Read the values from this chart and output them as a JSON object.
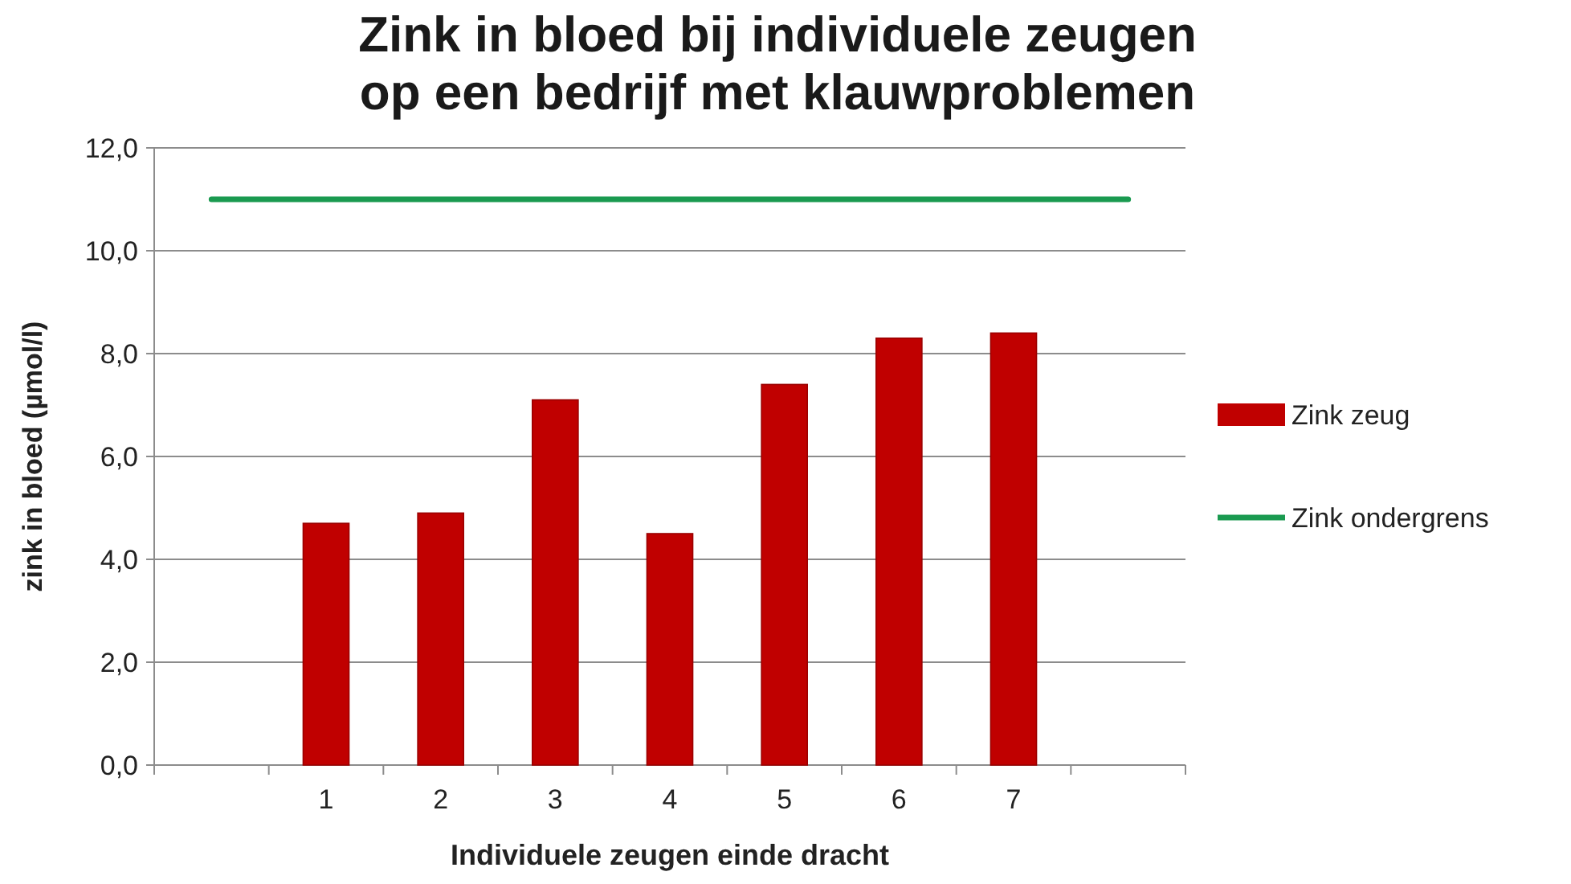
{
  "chart_data": {
    "type": "bar",
    "title": "Zink in bloed bij individuele zeugen\nop een bedrijf met klauwproblemen",
    "xlabel": "Individuele zeugen einde dracht",
    "ylabel": "zink in bloed (µmol/l)",
    "categories": [
      null,
      "1",
      "2",
      "3",
      "4",
      "5",
      "6",
      "7",
      null
    ],
    "series": [
      {
        "name": "Zink zeug",
        "color": "#c00000",
        "values": [
          null,
          4.7,
          4.9,
          7.1,
          4.5,
          7.4,
          8.3,
          8.4,
          null
        ]
      },
      {
        "name": "Zink ondergrens",
        "type": "line",
        "color": "#1a9a50",
        "values": [
          11,
          11,
          11,
          11,
          11,
          11,
          11,
          11,
          11
        ]
      }
    ],
    "ylim": [
      0,
      12
    ],
    "yticks": [
      {
        "value": 0,
        "label": "0,0"
      },
      {
        "value": 2,
        "label": "2,0"
      },
      {
        "value": 4,
        "label": "4,0"
      },
      {
        "value": 6,
        "label": "6,0"
      },
      {
        "value": 8,
        "label": "8,0"
      },
      {
        "value": 10,
        "label": "10,0"
      },
      {
        "value": 12,
        "label": "12,0"
      }
    ],
    "grid": "y",
    "legend": "right"
  }
}
